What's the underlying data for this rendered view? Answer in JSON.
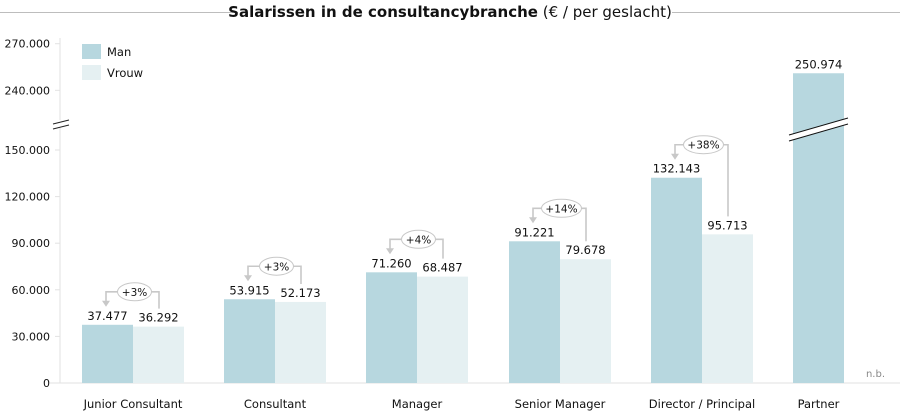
{
  "chart_data": {
    "type": "bar",
    "title": "Salarissen in de consultancybranche",
    "subtitle": "(€ / per geslacht)",
    "xlabel": "",
    "ylabel": "",
    "categories": [
      "Junior Consultant",
      "Consultant",
      "Manager",
      "Senior Manager",
      "Director / Principal",
      "Partner"
    ],
    "series": [
      {
        "name": "Man",
        "color": "#b7d7df",
        "values": [
          37477,
          53915,
          71260,
          91221,
          132143,
          250974
        ],
        "labels": [
          "37.477",
          "53.915",
          "71.260",
          "91.221",
          "132.143",
          "250.974"
        ]
      },
      {
        "name": "Vrouw",
        "color": "#e5f0f2",
        "values": [
          36292,
          52173,
          68487,
          79678,
          95713,
          null
        ],
        "labels": [
          "36.292",
          "52.173",
          "68.487",
          "79.678",
          "95.713",
          "n.b."
        ]
      }
    ],
    "differences": [
      "+3%",
      "+3%",
      "+4%",
      "+14%",
      "+38%",
      null
    ],
    "yticks": [
      0,
      30000,
      60000,
      90000,
      120000,
      150000,
      240000,
      270000
    ],
    "ytick_labels": [
      "0",
      "30.000",
      "60.000",
      "90.000",
      "120.000",
      "150.000",
      "240.000",
      "270.000"
    ],
    "ylim": [
      0,
      270000
    ],
    "axis_break": [
      150000,
      240000
    ],
    "legend": {
      "position": "top-left",
      "entries": [
        "Man",
        "Vrouw"
      ]
    },
    "grid": false
  }
}
